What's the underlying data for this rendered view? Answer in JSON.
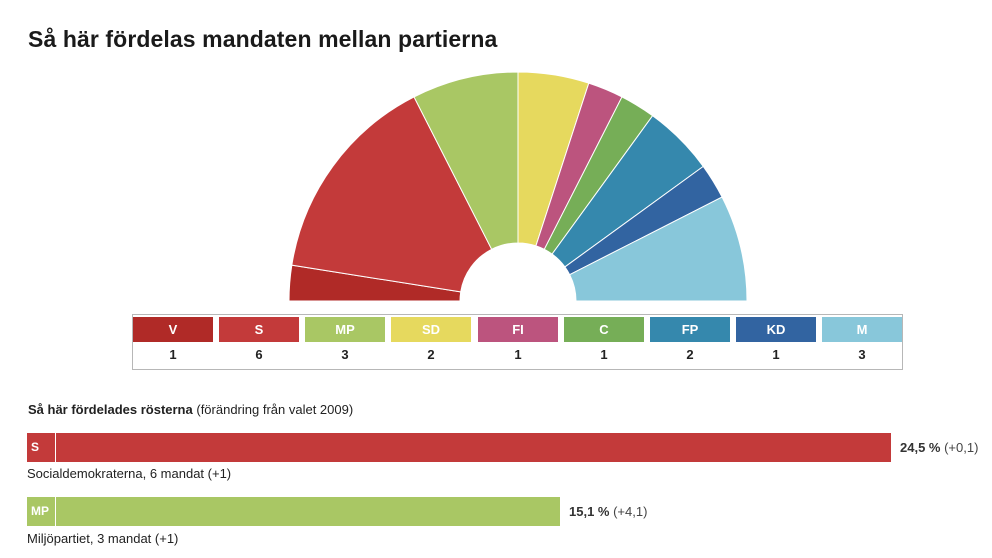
{
  "page": {
    "title": "Så här fördelas mandaten mellan partierna"
  },
  "chart_data": [
    {
      "type": "pie",
      "variant": "half-donut seat distribution",
      "total_seats": 20,
      "categories": [
        "V",
        "S",
        "MP",
        "SD",
        "FI",
        "C",
        "FP",
        "KD",
        "M"
      ],
      "values": [
        1,
        6,
        3,
        2,
        1,
        1,
        2,
        1,
        3
      ],
      "colors": [
        "#b02a27",
        "#c33a3a",
        "#a9c764",
        "#e6d95e",
        "#bc547e",
        "#76ae57",
        "#3588ad",
        "#3264a1",
        "#88c7da"
      ],
      "legend": [
        {
          "label": "V",
          "count": "1",
          "color": "#b02a27"
        },
        {
          "label": "S",
          "count": "6",
          "color": "#c33a3a"
        },
        {
          "label": "MP",
          "count": "3",
          "color": "#a9c764"
        },
        {
          "label": "SD",
          "count": "2",
          "color": "#e6d95e"
        },
        {
          "label": "FI",
          "count": "1",
          "color": "#bc547e"
        },
        {
          "label": "C",
          "count": "1",
          "color": "#76ae57"
        },
        {
          "label": "FP",
          "count": "2",
          "color": "#3588ad"
        },
        {
          "label": "KD",
          "count": "1",
          "color": "#3264a1"
        },
        {
          "label": "M",
          "count": "3",
          "color": "#88c7da"
        }
      ]
    },
    {
      "type": "bar",
      "orientation": "horizontal",
      "heading_bold": "Så här fördelades rösterna",
      "heading_rest": "(förändring från valet 2009)",
      "xlim": [
        0,
        24.5
      ],
      "bars": [
        {
          "abbr": "S",
          "value": 24.5,
          "percent_label": "24,5 %",
          "change_label": "(+0,1)",
          "caption": "Socialdemokraterna, 6 mandat (+1)",
          "color": "#c33a3a"
        },
        {
          "abbr": "MP",
          "value": 15.1,
          "percent_label": "15,1 %",
          "change_label": "(+4,1)",
          "caption": "Miljöpartiet, 3 mandat (+1)",
          "color": "#a9c764"
        }
      ]
    }
  ]
}
